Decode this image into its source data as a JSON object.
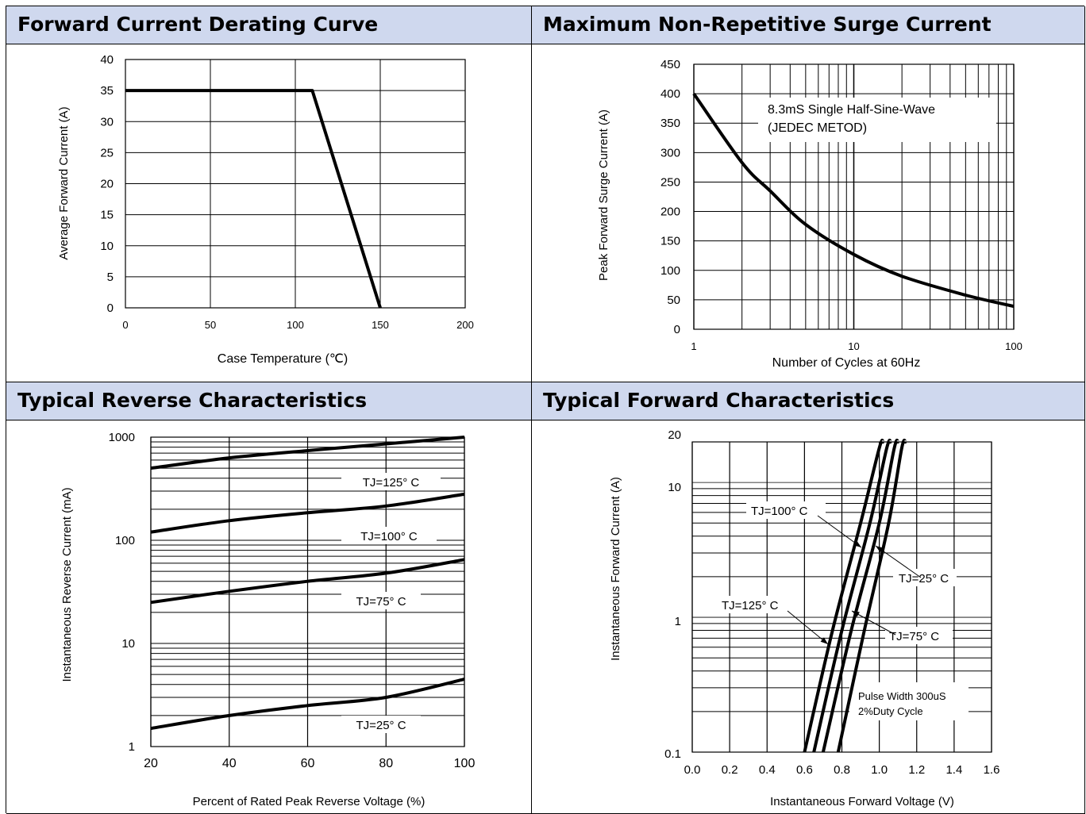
{
  "panels": [
    {
      "title": "Forward Current Derating Curve"
    },
    {
      "title": "Maximum Non-Repetitive Surge Current"
    },
    {
      "title": "Typical Reverse Characteristics"
    },
    {
      "title": "Typical Forward Characteristics"
    }
  ],
  "chart_data": [
    {
      "type": "line",
      "title": "Forward Current Derating Curve",
      "xlabel": "Case Temperature (℃)",
      "ylabel": "Average Forward Current (A)",
      "xlim": [
        0,
        200
      ],
      "ylim": [
        0,
        40
      ],
      "x_ticks": [
        0,
        50,
        100,
        150,
        200
      ],
      "y_ticks": [
        0,
        5,
        10,
        15,
        20,
        25,
        30,
        35,
        40
      ],
      "grid": true,
      "series": [
        {
          "x": [
            0,
            110,
            150
          ],
          "y": [
            35,
            35,
            0
          ]
        }
      ]
    },
    {
      "type": "line",
      "title": "Maximum Non-Repetitive Surge Current",
      "xlabel": "Number of Cycles at 60Hz",
      "ylabel": "Peak Forward Surge Current (A)",
      "x_scale": "log",
      "xlim": [
        1,
        100
      ],
      "ylim": [
        0,
        450
      ],
      "x_ticks": [
        "1",
        "10",
        "100"
      ],
      "y_ticks": [
        0,
        50,
        100,
        150,
        200,
        250,
        300,
        350,
        400,
        450
      ],
      "grid": true,
      "annotations": [
        "8.3mS Single Half-Sine-Wave",
        "(JEDEC METOD)"
      ],
      "series": [
        {
          "x": [
            1,
            2,
            3,
            5,
            10,
            20,
            50,
            100
          ],
          "y": [
            400,
            283,
            235,
            178,
            127,
            90,
            58,
            39
          ]
        }
      ]
    },
    {
      "type": "line",
      "title": "Typical Reverse Characteristics",
      "xlabel": "Percent of Rated Peak Reverse Voltage (%)",
      "ylabel": "Instantaneous Reverse Current (mA)",
      "y_scale": "log",
      "xlim": [
        20,
        100
      ],
      "ylim": [
        1,
        1000
      ],
      "x_ticks": [
        20,
        40,
        60,
        80,
        100
      ],
      "y_ticks": [
        "1",
        "10",
        "100",
        "1000"
      ],
      "grid": true,
      "series": [
        {
          "name": "TJ=125° C",
          "x": [
            20,
            40,
            60,
            80,
            100
          ],
          "y": [
            500,
            630,
            740,
            860,
            1000
          ]
        },
        {
          "name": "TJ=100° C",
          "x": [
            20,
            40,
            60,
            80,
            100
          ],
          "y": [
            120,
            155,
            185,
            215,
            280
          ]
        },
        {
          "name": "TJ=75° C",
          "x": [
            20,
            40,
            60,
            80,
            100
          ],
          "y": [
            25,
            32,
            40,
            48,
            65
          ]
        },
        {
          "name": "TJ=25° C",
          "x": [
            20,
            40,
            60,
            80,
            100
          ],
          "y": [
            1.5,
            2.0,
            2.5,
            3.0,
            4.5
          ]
        }
      ]
    },
    {
      "type": "line",
      "title": "Typical Forward Characteristics",
      "xlabel": "Instantaneous Forward Voltage (V)",
      "ylabel": "Instantaneous Forward Current (A)",
      "y_scale": "log",
      "xlim": [
        0.0,
        1.6
      ],
      "ylim": [
        0.1,
        20
      ],
      "x_ticks": [
        "0.0",
        "0.2",
        "0.4",
        "0.6",
        "0.8",
        "1.0",
        "1.2",
        "1.4",
        "1.6"
      ],
      "y_ticks": [
        "0.1",
        "1",
        "10",
        "20"
      ],
      "grid": true,
      "annotations": [
        "Pulse Width 300uS",
        "2%Duty Cycle"
      ],
      "series": [
        {
          "name": "TJ=125° C",
          "x": [
            0.6,
            0.75,
            0.9,
            1.0,
            1.02
          ],
          "y": [
            0.1,
            0.8,
            5,
            18,
            20
          ]
        },
        {
          "name": "TJ=100° C",
          "x": [
            0.65,
            0.8,
            0.95,
            1.04,
            1.06
          ],
          "y": [
            0.1,
            0.8,
            5,
            18,
            20
          ]
        },
        {
          "name": "TJ=75° C",
          "x": [
            0.7,
            0.85,
            1.0,
            1.08,
            1.1
          ],
          "y": [
            0.1,
            0.8,
            5,
            18,
            20
          ]
        },
        {
          "name": "TJ=25° C",
          "x": [
            0.78,
            0.92,
            1.05,
            1.12,
            1.14
          ],
          "y": [
            0.1,
            0.8,
            5,
            18,
            20
          ]
        }
      ]
    }
  ]
}
